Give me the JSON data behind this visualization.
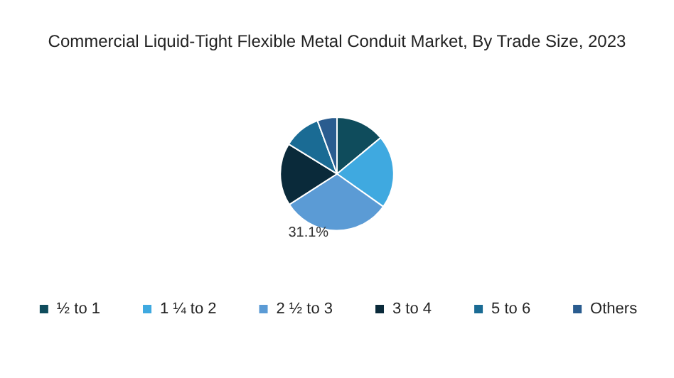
{
  "chart_data": {
    "type": "pie",
    "title": "Commercial Liquid-Tight Flexible Metal Conduit Market, By Trade Size, 2023",
    "categories": [
      "½ to 1",
      "1 ¼ to 2",
      "2 ½ to 3",
      "3 to 4",
      "5 to 6",
      "Others"
    ],
    "values": [
      14,
      20.8,
      31.1,
      17.9,
      10.6,
      5.6
    ],
    "colors": [
      "#0f4c5c",
      "#3fa9e0",
      "#5b9bd5",
      "#0a2a3a",
      "#1a6b94",
      "#2a5c8f"
    ],
    "value_labels": [
      null,
      null,
      "31.1%",
      null,
      null,
      null
    ],
    "legend": "bottom"
  }
}
